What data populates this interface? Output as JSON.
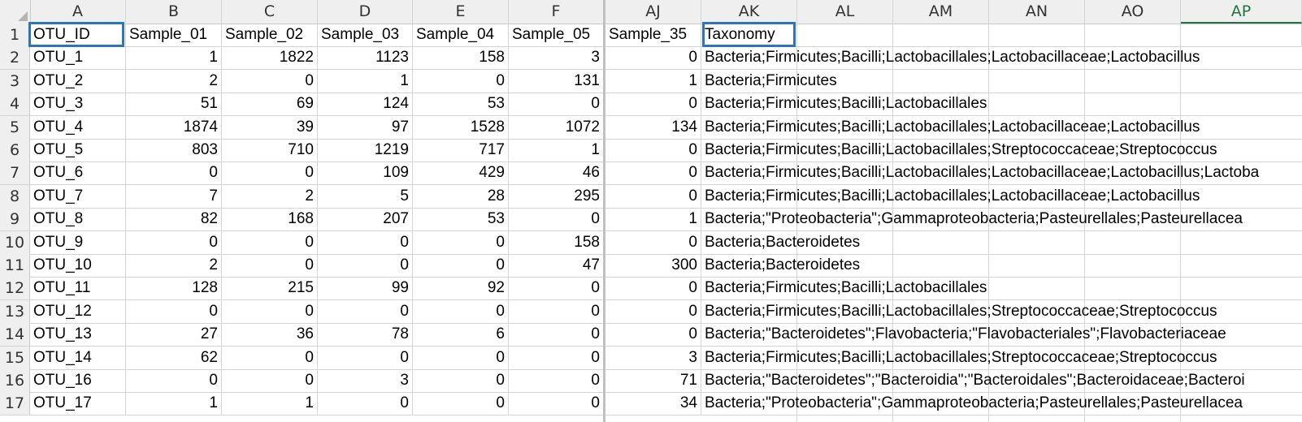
{
  "columns": [
    "A",
    "B",
    "C",
    "D",
    "E",
    "F",
    "AJ",
    "AK",
    "AL",
    "AM",
    "AN",
    "AO",
    "AP"
  ],
  "selected_column": "AP",
  "header_row": [
    "OTU_ID",
    "Sample_01",
    "Sample_02",
    "Sample_03",
    "Sample_04",
    "Sample_05",
    "Sample_35",
    "Taxonomy"
  ],
  "rows": [
    {
      "n": "2",
      "otu": "OTU_1",
      "vals": [
        "1",
        "1822",
        "1123",
        "158",
        "3",
        "0"
      ],
      "tax": "Bacteria;Firmicutes;Bacilli;Lactobacillales;Lactobacillaceae;Lactobacillus"
    },
    {
      "n": "3",
      "otu": "OTU_2",
      "vals": [
        "2",
        "0",
        "1",
        "0",
        "131",
        "1"
      ],
      "tax": "Bacteria;Firmicutes"
    },
    {
      "n": "4",
      "otu": "OTU_3",
      "vals": [
        "51",
        "69",
        "124",
        "53",
        "0",
        "0"
      ],
      "tax": "Bacteria;Firmicutes;Bacilli;Lactobacillales"
    },
    {
      "n": "5",
      "otu": "OTU_4",
      "vals": [
        "1874",
        "39",
        "97",
        "1528",
        "1072",
        "134"
      ],
      "tax": "Bacteria;Firmicutes;Bacilli;Lactobacillales;Lactobacillaceae;Lactobacillus"
    },
    {
      "n": "6",
      "otu": "OTU_5",
      "vals": [
        "803",
        "710",
        "1219",
        "717",
        "1",
        "0"
      ],
      "tax": "Bacteria;Firmicutes;Bacilli;Lactobacillales;Streptococcaceae;Streptococcus"
    },
    {
      "n": "7",
      "otu": "OTU_6",
      "vals": [
        "0",
        "0",
        "109",
        "429",
        "46",
        "0"
      ],
      "tax": "Bacteria;Firmicutes;Bacilli;Lactobacillales;Lactobacillaceae;Lactobacillus;Lactoba"
    },
    {
      "n": "8",
      "otu": "OTU_7",
      "vals": [
        "7",
        "2",
        "5",
        "28",
        "295",
        "0"
      ],
      "tax": "Bacteria;Firmicutes;Bacilli;Lactobacillales;Lactobacillaceae;Lactobacillus"
    },
    {
      "n": "9",
      "otu": "OTU_8",
      "vals": [
        "82",
        "168",
        "207",
        "53",
        "0",
        "1"
      ],
      "tax": "Bacteria;\"Proteobacteria\";Gammaproteobacteria;Pasteurellales;Pasteurellacea"
    },
    {
      "n": "10",
      "otu": "OTU_9",
      "vals": [
        "0",
        "0",
        "0",
        "0",
        "158",
        "0"
      ],
      "tax": "Bacteria;Bacteroidetes"
    },
    {
      "n": "11",
      "otu": "OTU_10",
      "vals": [
        "2",
        "0",
        "0",
        "0",
        "47",
        "300"
      ],
      "tax": "Bacteria;Bacteroidetes"
    },
    {
      "n": "12",
      "otu": "OTU_11",
      "vals": [
        "128",
        "215",
        "99",
        "92",
        "0",
        "0"
      ],
      "tax": "Bacteria;Firmicutes;Bacilli;Lactobacillales"
    },
    {
      "n": "13",
      "otu": "OTU_12",
      "vals": [
        "0",
        "0",
        "0",
        "0",
        "0",
        "0"
      ],
      "tax": "Bacteria;Firmicutes;Bacilli;Lactobacillales;Streptococcaceae;Streptococcus"
    },
    {
      "n": "14",
      "otu": "OTU_13",
      "vals": [
        "27",
        "36",
        "78",
        "6",
        "0",
        "0"
      ],
      "tax": "Bacteria;\"Bacteroidetes\";Flavobacteria;\"Flavobacteriales\";Flavobacteriaceae"
    },
    {
      "n": "15",
      "otu": "OTU_14",
      "vals": [
        "62",
        "0",
        "0",
        "0",
        "0",
        "3"
      ],
      "tax": "Bacteria;Firmicutes;Bacilli;Lactobacillales;Streptococcaceae;Streptococcus"
    },
    {
      "n": "16",
      "otu": "OTU_16",
      "vals": [
        "0",
        "0",
        "3",
        "0",
        "0",
        "71"
      ],
      "tax": "Bacteria;\"Bacteroidetes\";\"Bacteroidia\";\"Bacteroidales\";Bacteroidaceae;Bacteroi"
    },
    {
      "n": "17",
      "otu": "OTU_17",
      "vals": [
        "1",
        "1",
        "0",
        "0",
        "0",
        "34"
      ],
      "tax": "Bacteria;\"Proteobacteria\";Gammaproteobacteria;Pasteurellales;Pasteurellacea"
    }
  ],
  "row1_label": "1",
  "colors": {
    "selection_border": "#2e75b6",
    "selected_header_text": "#217346",
    "grid": "#d4d4d4",
    "header_bg": "#efefef"
  }
}
